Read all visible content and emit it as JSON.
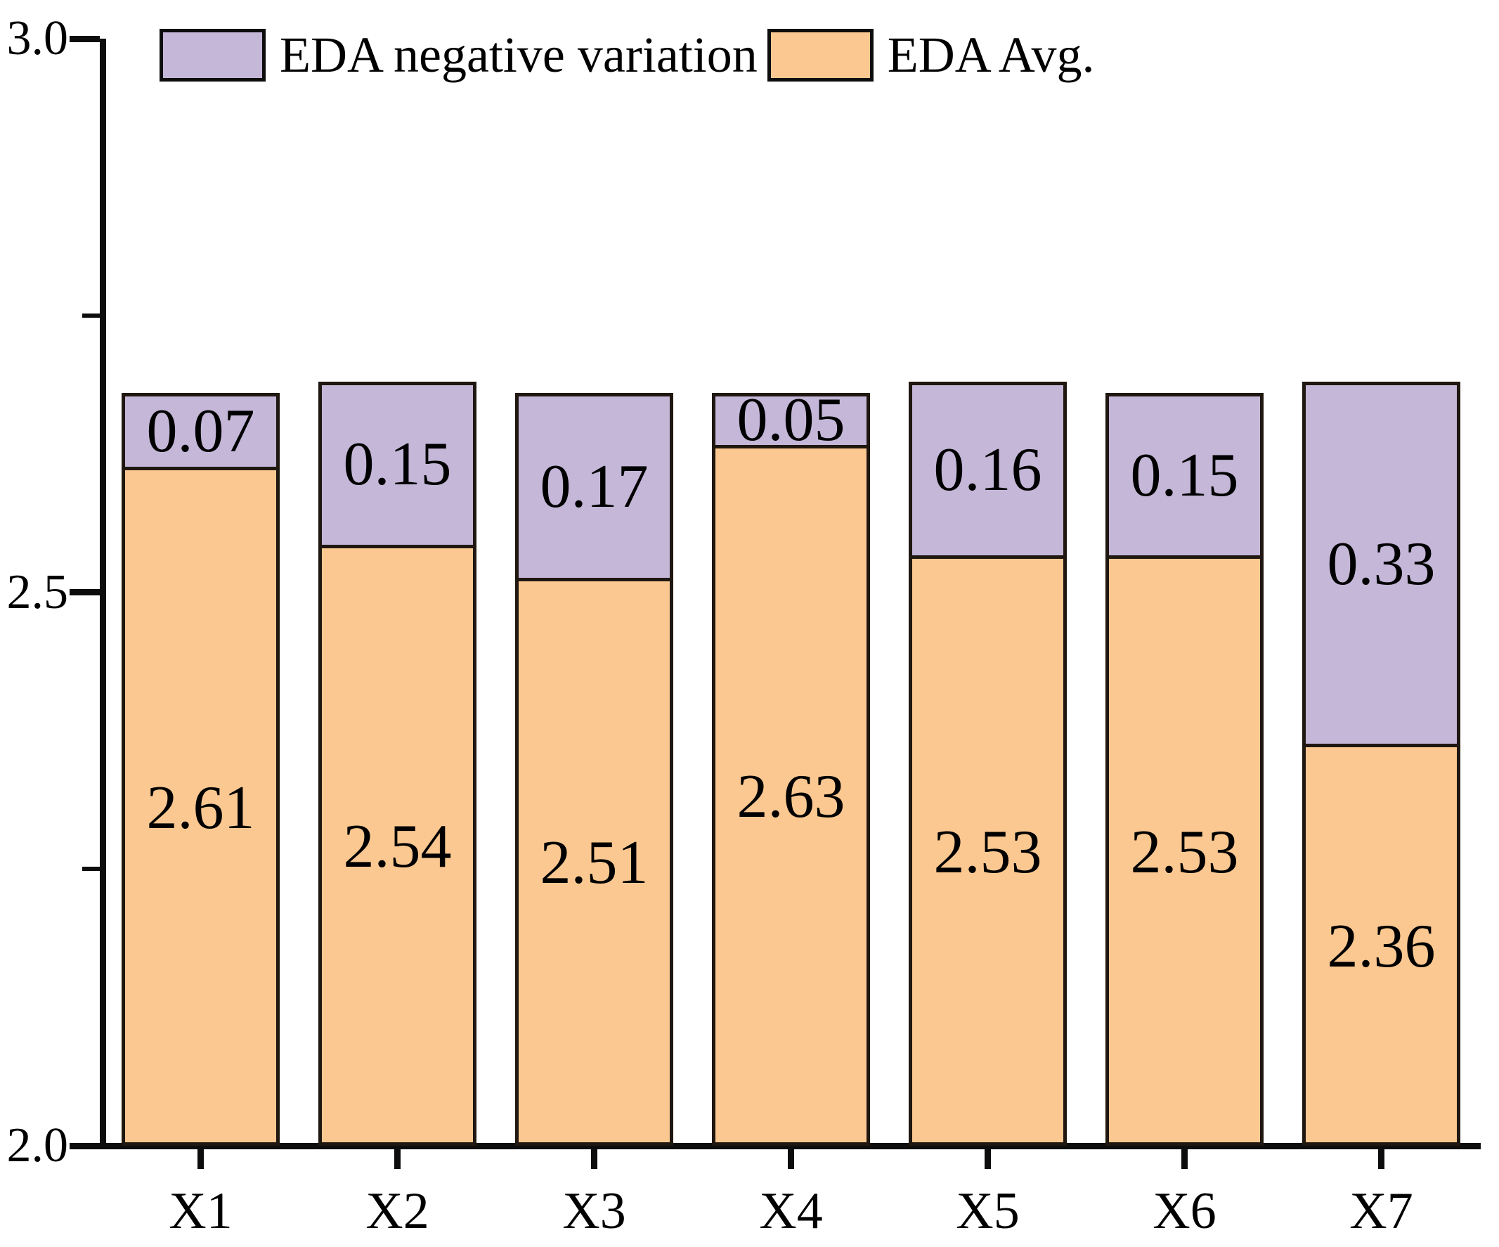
{
  "chart_data": {
    "type": "bar",
    "stacked": true,
    "title": "",
    "xlabel": "",
    "ylabel": "",
    "categories": [
      "X1",
      "X2",
      "X3",
      "X4",
      "X5",
      "X6",
      "X7"
    ],
    "series": [
      {
        "name": "EDA Avg.",
        "color": "#fbc891",
        "values": [
          2.61,
          2.54,
          2.51,
          2.63,
          2.53,
          2.53,
          2.36
        ],
        "labels": [
          "2.61",
          "2.54",
          "2.51",
          "2.63",
          "2.53",
          "2.53",
          "2.36"
        ]
      },
      {
        "name": "EDA negative variation",
        "color": "#c4b7d8",
        "values": [
          0.07,
          0.15,
          0.17,
          0.05,
          0.16,
          0.15,
          0.33
        ],
        "labels": [
          "0.07",
          "0.15",
          "0.17",
          "0.05",
          "0.16",
          "0.15",
          "0.33"
        ]
      }
    ],
    "ylim": [
      2.0,
      3.0
    ],
    "baseline": 2.0,
    "y_major_ticks": [
      {
        "value": 3.0,
        "label": "3.0"
      },
      {
        "value": 2.5,
        "label": "2.5"
      },
      {
        "value": 2.0,
        "label": "2.0"
      }
    ],
    "y_minor_ticks": [
      2.75,
      2.25
    ],
    "grid": false,
    "legend_position": "top-left",
    "bar_outline_color": "#1f1710",
    "axis_color": "#0d0d0d",
    "text_color": "#000000"
  },
  "legend": {
    "items": [
      {
        "label": "EDA negative variation",
        "color": "#c4b7d8"
      },
      {
        "label": "EDA Avg.",
        "color": "#fbc891"
      }
    ]
  }
}
